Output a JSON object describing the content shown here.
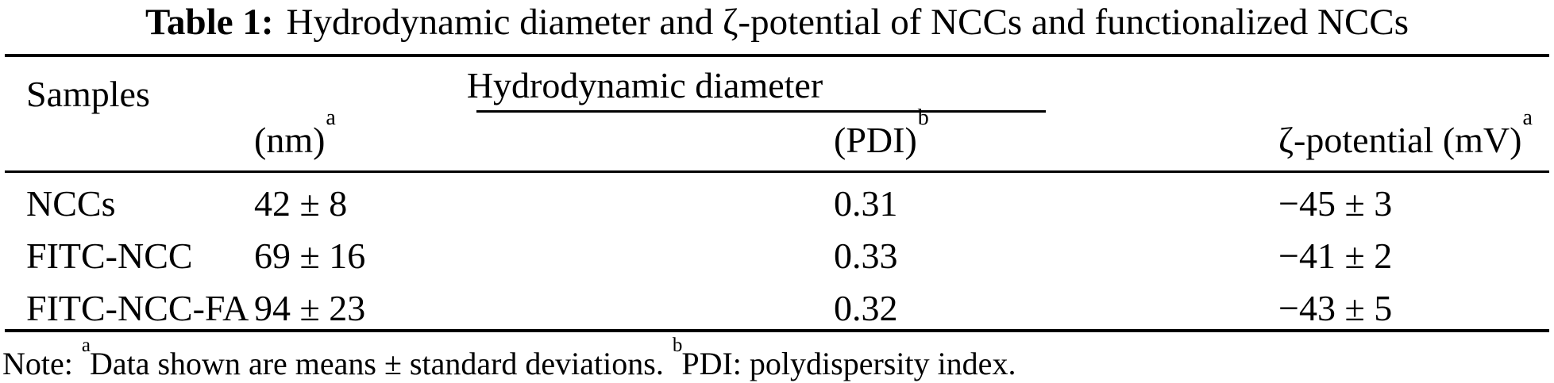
{
  "title": {
    "label": "Table 1:",
    "text": "Hydrodynamic diameter and ζ-potential of NCCs and functionalized NCCs"
  },
  "table": {
    "samples_header": "Samples",
    "group_header": "Hydrodynamic diameter",
    "subheaders": {
      "nm": {
        "base": "(nm)",
        "sup": "a"
      },
      "pdi": {
        "base": "(PDI)",
        "sup": "b"
      },
      "zeta": {
        "base": "ζ-potential (mV)",
        "sup": "a"
      }
    },
    "rows": [
      {
        "sample": "NCCs",
        "nm": "42 ± 8",
        "pdi": "0.31",
        "zeta": "−45 ± 3"
      },
      {
        "sample": "FITC-NCC",
        "nm": "69 ± 16",
        "pdi": "0.33",
        "zeta": "−41 ± 2"
      },
      {
        "sample": "FITC-NCC-FA",
        "nm": "94 ± 23",
        "pdi": "0.32",
        "zeta": "−43 ± 5"
      }
    ]
  },
  "note": {
    "prefix": "Note: ",
    "sup_a": "a",
    "text_a": "Data shown are means ± standard deviations. ",
    "sup_b": "b",
    "text_b": "PDI: polydispersity index."
  },
  "colors": {
    "text": "#000000",
    "background": "#ffffff",
    "rule": "#000000"
  }
}
